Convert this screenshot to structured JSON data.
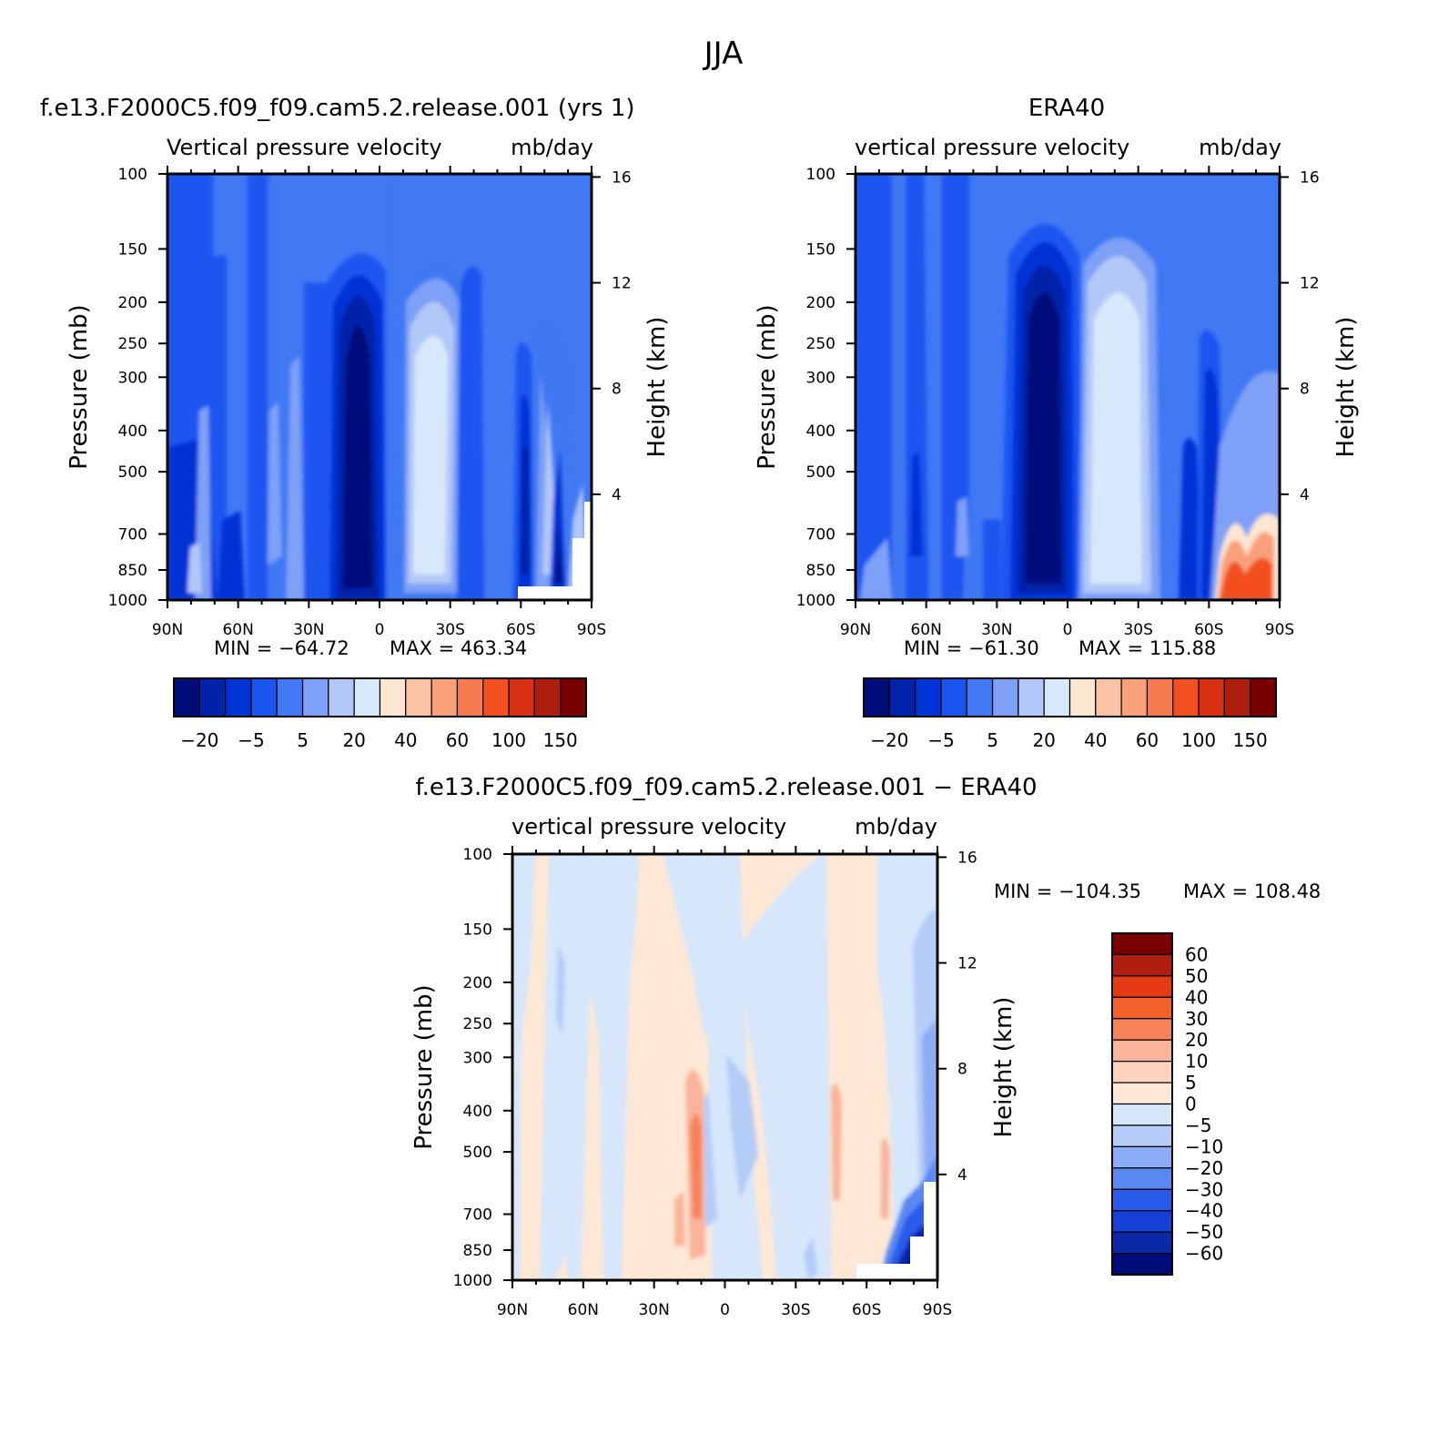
{
  "title": "JJA",
  "chart_data": [
    {
      "id": "model",
      "type": "heatmap",
      "title": "f.e13.F2000C5.f09_f09.cam5.2.release.001 (yrs 1)",
      "subtitle": "Vertical pressure velocity",
      "units": "mb/day",
      "ylabel": "Pressure (mb)",
      "y2label": "Height (km)",
      "x_ticks": [
        "90N",
        "60N",
        "30N",
        "0",
        "30S",
        "60S",
        "90S"
      ],
      "x_values": [
        90,
        60,
        30,
        0,
        -30,
        -60,
        -90
      ],
      "y_ticks": [
        100,
        150,
        200,
        250,
        300,
        400,
        500,
        700,
        850,
        1000
      ],
      "y2_ticks": [
        16,
        12,
        8,
        4
      ],
      "ylim": [
        1000,
        100
      ],
      "ylog": true,
      "min_label": "MIN = −64.72",
      "max_label": "MAX = 463.34",
      "min": -64.72,
      "max": 463.34,
      "colorbar": {
        "orientation": "horizontal",
        "levels": [
          "−20",
          "−5",
          "5",
          "20",
          "40",
          "60",
          "100",
          "150"
        ],
        "colors": [
          "#000e7a",
          "#0022a8",
          "#0033d6",
          "#1a55f0",
          "#4178f4",
          "#7ea0f6",
          "#b2c8f8",
          "#d8e8fb",
          "#fde6d2",
          "#fbc4a6",
          "#f9a07a",
          "#f77a50",
          "#f3501f",
          "#d83012",
          "#ad1e0e",
          "#7a0000"
        ]
      }
    },
    {
      "id": "obs",
      "type": "heatmap",
      "title": "ERA40",
      "subtitle": "vertical pressure velocity",
      "units": "mb/day",
      "ylabel": "Pressure (mb)",
      "y2label": "Height (km)",
      "x_ticks": [
        "90N",
        "60N",
        "30N",
        "0",
        "30S",
        "60S",
        "90S"
      ],
      "x_values": [
        90,
        60,
        30,
        0,
        -30,
        -60,
        -90
      ],
      "y_ticks": [
        100,
        150,
        200,
        250,
        300,
        400,
        500,
        700,
        850,
        1000
      ],
      "y2_ticks": [
        16,
        12,
        8,
        4
      ],
      "ylim": [
        1000,
        100
      ],
      "ylog": true,
      "min_label": "MIN = −61.30",
      "max_label": "MAX = 115.88",
      "min": -61.3,
      "max": 115.88,
      "colorbar": {
        "orientation": "horizontal",
        "levels": [
          "−20",
          "−5",
          "5",
          "20",
          "40",
          "60",
          "100",
          "150"
        ],
        "colors": [
          "#000e7a",
          "#0022a8",
          "#0033d6",
          "#1a55f0",
          "#4178f4",
          "#7ea0f6",
          "#b2c8f8",
          "#d8e8fb",
          "#fde6d2",
          "#fbc4a6",
          "#f9a07a",
          "#f77a50",
          "#f3501f",
          "#d83012",
          "#ad1e0e",
          "#7a0000"
        ]
      }
    },
    {
      "id": "diff",
      "type": "heatmap",
      "title": "f.e13.F2000C5.f09_f09.cam5.2.release.001 − ERA40",
      "subtitle": "vertical pressure velocity",
      "units": "mb/day",
      "ylabel": "Pressure (mb)",
      "y2label": "Height (km)",
      "x_ticks": [
        "90N",
        "60N",
        "30N",
        "0",
        "30S",
        "60S",
        "90S"
      ],
      "x_values": [
        90,
        60,
        30,
        0,
        -30,
        -60,
        -90
      ],
      "y_ticks": [
        100,
        150,
        200,
        250,
        300,
        400,
        500,
        700,
        850,
        1000
      ],
      "y2_ticks": [
        16,
        12,
        8,
        4
      ],
      "ylim": [
        1000,
        100
      ],
      "ylog": true,
      "min_label": "MIN = −104.35",
      "max_label": "MAX = 108.48",
      "min": -104.35,
      "max": 108.48,
      "colorbar": {
        "orientation": "vertical",
        "levels": [
          "60",
          "50",
          "40",
          "30",
          "20",
          "10",
          "5",
          "0",
          "−5",
          "−10",
          "−20",
          "−30",
          "−40",
          "−50",
          "−60"
        ],
        "colors": [
          "#7a0000",
          "#b01e0e",
          "#e63a14",
          "#f2612a",
          "#f7825a",
          "#fab49a",
          "#fdd2bc",
          "#fde8d6",
          "#d6e6fb",
          "#b4ccf8",
          "#8cacf6",
          "#5a88f2",
          "#2a5cec",
          "#1440d8",
          "#0a28a8",
          "#000c7a"
        ]
      }
    }
  ]
}
